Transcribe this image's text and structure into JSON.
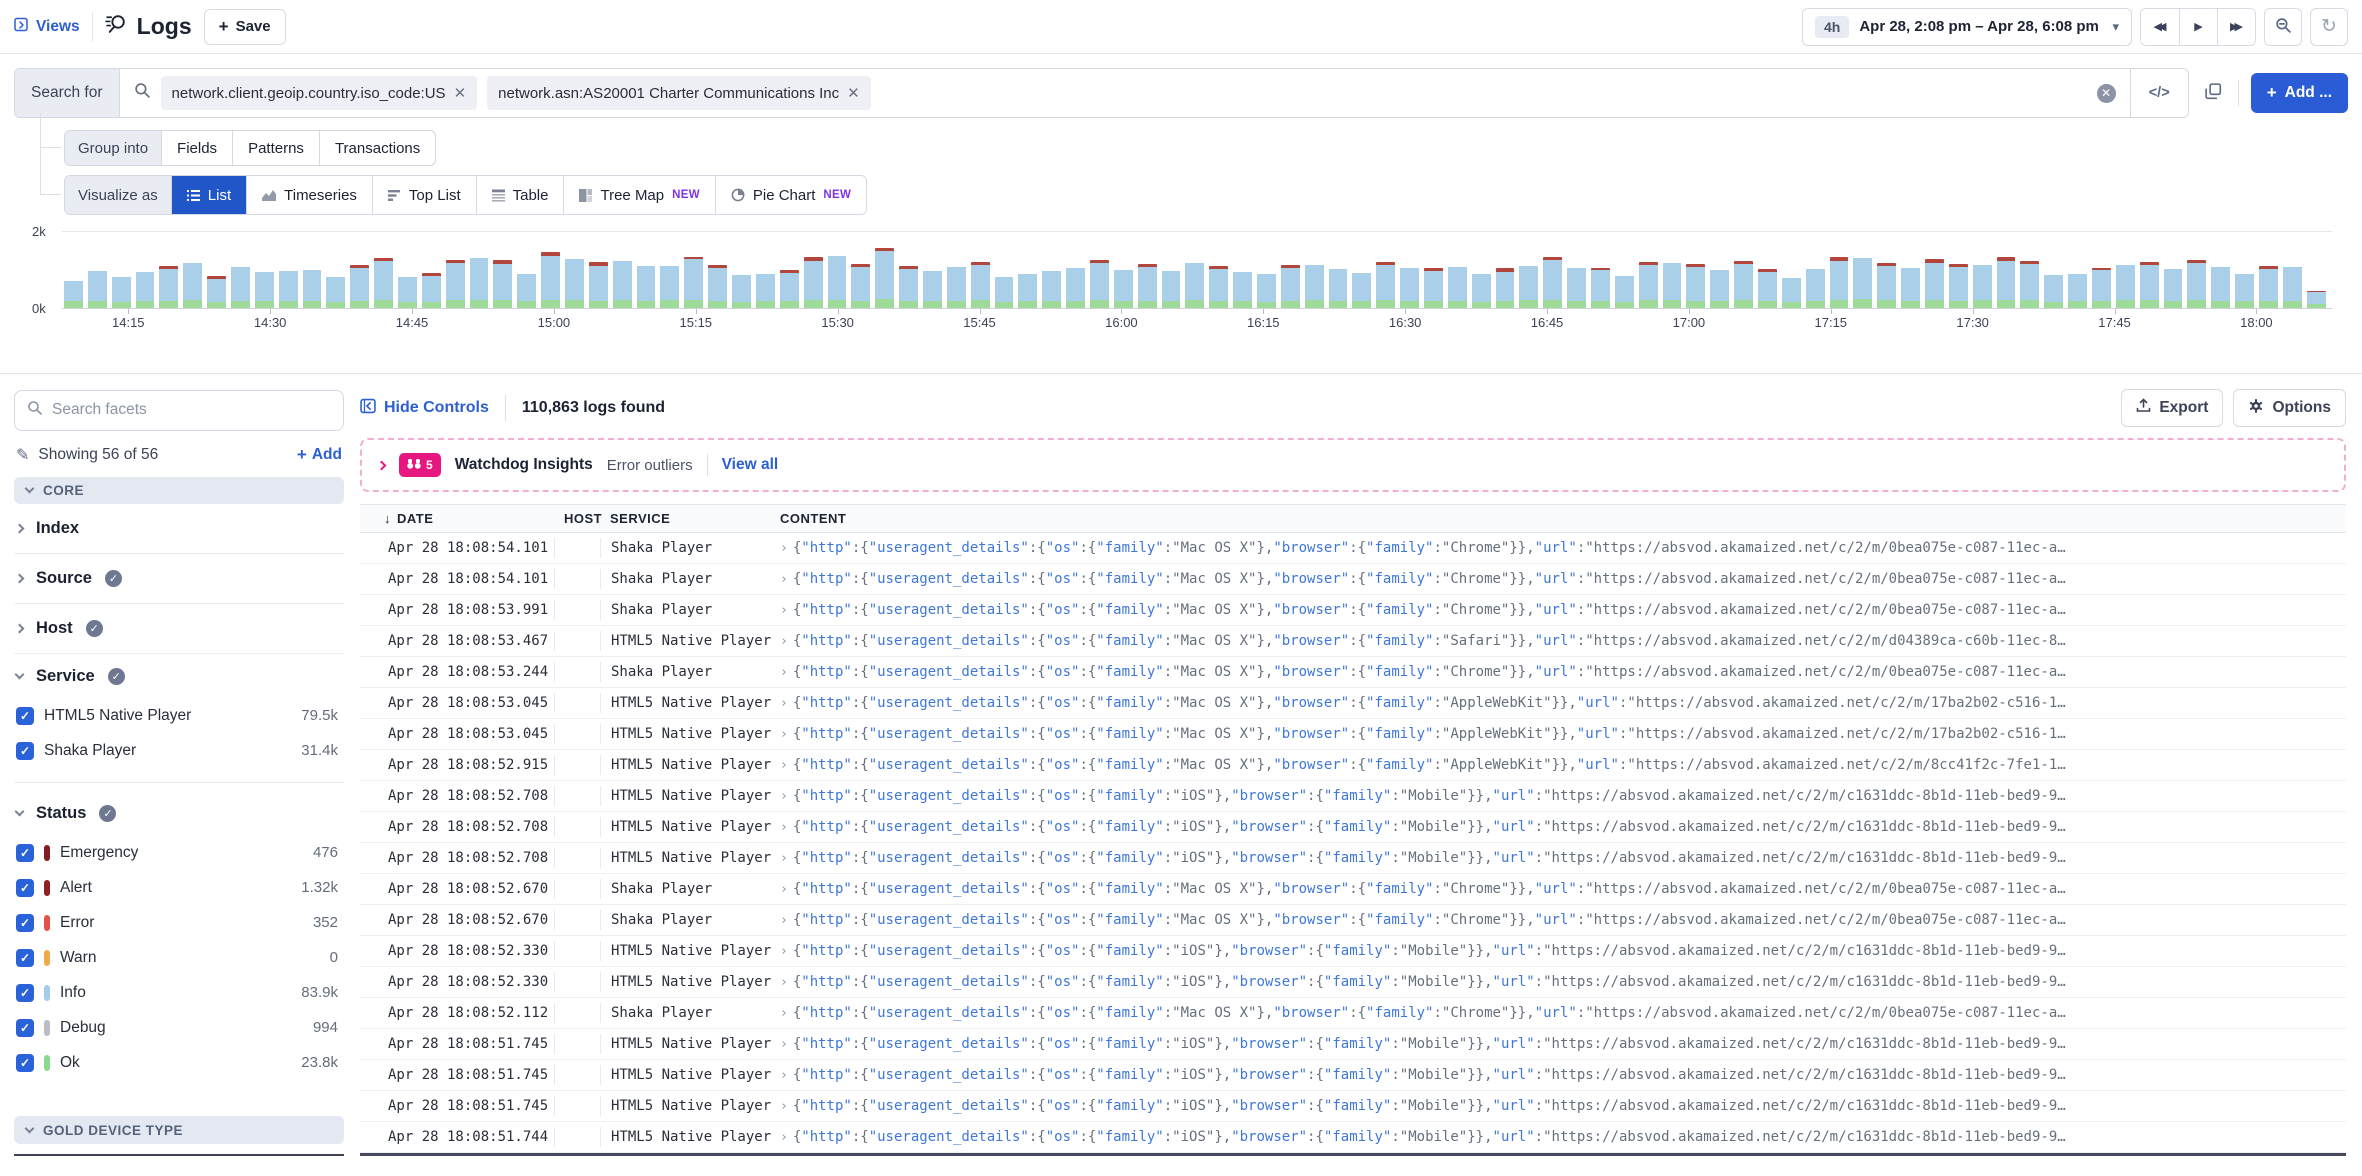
{
  "toolbar": {
    "views_label": "Views",
    "title": "Logs",
    "save_label": "Save",
    "time_range": {
      "duration": "4h",
      "label": "Apr 28, 2:08 pm – Apr 28, 6:08 pm"
    }
  },
  "search": {
    "label": "Search for",
    "chips": [
      "network.client.geoip.country.iso_code:US",
      "network.asn:AS20001 Charter Communications Inc"
    ],
    "code_toggle_label": "</>",
    "add_label": "Add ..."
  },
  "group_into": {
    "label": "Group into",
    "options": [
      "Fields",
      "Patterns",
      "Transactions"
    ]
  },
  "visualize_as": {
    "label": "Visualize as",
    "options": [
      {
        "label": "List",
        "icon": "list-icon",
        "active": true
      },
      {
        "label": "Timeseries",
        "icon": "timeseries-icon"
      },
      {
        "label": "Top List",
        "icon": "toplist-icon"
      },
      {
        "label": "Table",
        "icon": "table-icon"
      },
      {
        "label": "Tree Map",
        "icon": "treemap-icon",
        "badge": "NEW"
      },
      {
        "label": "Pie Chart",
        "icon": "pie-icon",
        "badge": "NEW"
      }
    ]
  },
  "chart_data": {
    "type": "bar",
    "stacked": true,
    "title": "Log volume histogram",
    "ylim": [
      0,
      2000
    ],
    "ytick_labels": [
      "0k",
      "2k"
    ],
    "x_start": "14:08",
    "x_end": "18:08",
    "bucket_minutes": 2.5,
    "tick_labels": [
      "14:15",
      "14:30",
      "14:45",
      "15:00",
      "15:15",
      "15:30",
      "15:45",
      "16:00",
      "16:15",
      "16:30",
      "16:45",
      "17:00",
      "17:15",
      "17:30",
      "17:45",
      "18:00"
    ],
    "legend_position": "none",
    "grid": "top-line-only",
    "bar_format": [
      "info",
      "ok",
      "error"
    ],
    "colors": {
      "info": "#a9cfe9",
      "ok": "#9edb99",
      "error": "#b2453c"
    },
    "bars": [
      [
        520,
        200,
        0
      ],
      [
        760,
        210,
        0
      ],
      [
        640,
        190,
        0
      ],
      [
        750,
        210,
        0
      ],
      [
        820,
        200,
        80
      ],
      [
        950,
        220,
        0
      ],
      [
        600,
        180,
        75
      ],
      [
        880,
        210,
        0
      ],
      [
        760,
        200,
        0
      ],
      [
        770,
        210,
        0
      ],
      [
        800,
        200,
        0
      ],
      [
        620,
        190,
        0
      ],
      [
        830,
        210,
        95
      ],
      [
        1000,
        230,
        70
      ],
      [
        640,
        180,
        0
      ],
      [
        660,
        190,
        75
      ],
      [
        950,
        230,
        85
      ],
      [
        1060,
        240,
        0
      ],
      [
        940,
        220,
        85
      ],
      [
        690,
        200,
        0
      ],
      [
        1120,
        240,
        95
      ],
      [
        1050,
        230,
        0
      ],
      [
        900,
        210,
        85
      ],
      [
        1010,
        220,
        0
      ],
      [
        890,
        210,
        0
      ],
      [
        880,
        220,
        0
      ],
      [
        1040,
        230,
        75
      ],
      [
        850,
        200,
        85
      ],
      [
        680,
        190,
        0
      ],
      [
        690,
        200,
        0
      ],
      [
        720,
        200,
        75
      ],
      [
        1010,
        230,
        85
      ],
      [
        1120,
        240,
        0
      ],
      [
        870,
        210,
        85
      ],
      [
        1220,
        260,
        95
      ],
      [
        820,
        210,
        75
      ],
      [
        770,
        200,
        0
      ],
      [
        880,
        210,
        0
      ],
      [
        920,
        220,
        75
      ],
      [
        640,
        190,
        0
      ],
      [
        700,
        200,
        0
      ],
      [
        760,
        210,
        0
      ],
      [
        850,
        210,
        0
      ],
      [
        950,
        220,
        85
      ],
      [
        800,
        210,
        0
      ],
      [
        870,
        210,
        75
      ],
      [
        780,
        200,
        0
      ],
      [
        970,
        220,
        0
      ],
      [
        820,
        210,
        85
      ],
      [
        760,
        200,
        0
      ],
      [
        700,
        190,
        0
      ],
      [
        850,
        210,
        75
      ],
      [
        900,
        220,
        0
      ],
      [
        810,
        210,
        0
      ],
      [
        730,
        200,
        0
      ],
      [
        900,
        220,
        85
      ],
      [
        840,
        210,
        0
      ],
      [
        780,
        200,
        75
      ],
      [
        860,
        210,
        0
      ],
      [
        700,
        190,
        0
      ],
      [
        760,
        200,
        85
      ],
      [
        880,
        220,
        0
      ],
      [
        1020,
        230,
        95
      ],
      [
        830,
        210,
        0
      ],
      [
        790,
        200,
        75
      ],
      [
        660,
        190,
        0
      ],
      [
        900,
        220,
        95
      ],
      [
        950,
        220,
        0
      ],
      [
        860,
        210,
        75
      ],
      [
        800,
        210,
        0
      ],
      [
        930,
        220,
        85
      ],
      [
        760,
        200,
        75
      ],
      [
        620,
        180,
        0
      ],
      [
        810,
        210,
        0
      ],
      [
        1000,
        230,
        105
      ],
      [
        1050,
        250,
        0
      ],
      [
        890,
        220,
        75
      ],
      [
        830,
        210,
        0
      ],
      [
        950,
        230,
        95
      ],
      [
        870,
        210,
        85
      ],
      [
        920,
        220,
        0
      ],
      [
        1000,
        230,
        95
      ],
      [
        930,
        220,
        85
      ],
      [
        680,
        190,
        0
      ],
      [
        700,
        200,
        0
      ],
      [
        780,
        210,
        75
      ],
      [
        900,
        220,
        0
      ],
      [
        920,
        220,
        75
      ],
      [
        820,
        210,
        0
      ],
      [
        950,
        220,
        85
      ],
      [
        860,
        210,
        0
      ],
      [
        700,
        200,
        0
      ],
      [
        820,
        210,
        75
      ],
      [
        880,
        210,
        0
      ],
      [
        310,
        120,
        40
      ]
    ]
  },
  "sidebar": {
    "search_placeholder": "Search facets",
    "showing": "Showing 56 of 56",
    "add_label": "Add",
    "core_label": "CORE",
    "collapsed_facets": [
      {
        "label": "Index",
        "verified": false
      },
      {
        "label": "Source",
        "verified": true
      },
      {
        "label": "Host",
        "verified": true
      }
    ],
    "service": {
      "label": "Service",
      "verified": true,
      "items": [
        {
          "label": "HTML5 Native Player",
          "count": "79.5k",
          "checked": true
        },
        {
          "label": "Shaka Player",
          "count": "31.4k",
          "checked": true
        }
      ]
    },
    "status": {
      "label": "Status",
      "verified": true,
      "items": [
        {
          "label": "Emergency",
          "count": "476",
          "color": "#7f1d22",
          "checked": true
        },
        {
          "label": "Alert",
          "count": "1.32k",
          "color": "#8f2126",
          "checked": true
        },
        {
          "label": "Error",
          "count": "352",
          "color": "#e5504a",
          "checked": true
        },
        {
          "label": "Warn",
          "count": "0",
          "color": "#edab4a",
          "checked": true
        },
        {
          "label": "Info",
          "count": "83.9k",
          "color": "#a4cdec",
          "checked": true
        },
        {
          "label": "Debug",
          "count": "994",
          "color": "#b9bdc6",
          "checked": true
        },
        {
          "label": "Ok",
          "count": "23.8k",
          "color": "#8bd98d",
          "checked": true
        }
      ]
    },
    "bottom_section_label": "GOLD DEVICE TYPE"
  },
  "main": {
    "hide_controls_label": "Hide Controls",
    "logs_found": "110,863 logs found",
    "export_label": "Export",
    "options_label": "Options",
    "watchdog": {
      "badge_count": "5",
      "title": "Watchdog Insights",
      "subtitle": "Error outliers",
      "view_all_label": "View all"
    },
    "table": {
      "columns": [
        "DATE",
        "HOST",
        "SERVICE",
        "CONTENT"
      ],
      "url_base": "https://absvod.akamaized.net/c/2/m/",
      "rows": [
        {
          "status": "ok",
          "date": "Apr 28 18:08:54.101",
          "host": "",
          "service": "Shaka Player",
          "os": "Mac OS X",
          "browser": "Chrome",
          "url_id": "0bea075e-c087-11ec-a"
        },
        {
          "status": "info",
          "date": "Apr 28 18:08:54.101",
          "host": "",
          "service": "Shaka Player",
          "os": "Mac OS X",
          "browser": "Chrome",
          "url_id": "0bea075e-c087-11ec-a"
        },
        {
          "status": "ok",
          "date": "Apr 28 18:08:53.991",
          "host": "",
          "service": "Shaka Player",
          "os": "Mac OS X",
          "browser": "Chrome",
          "url_id": "0bea075e-c087-11ec-a"
        },
        {
          "status": "info",
          "date": "Apr 28 18:08:53.467",
          "host": "",
          "service": "HTML5 Native Player",
          "os": "Mac OS X",
          "browser": "Safari",
          "url_id": "d04389ca-c60b-11ec-8"
        },
        {
          "status": "info",
          "date": "Apr 28 18:08:53.244",
          "host": "",
          "service": "Shaka Player",
          "os": "Mac OS X",
          "browser": "Chrome",
          "url_id": "0bea075e-c087-11ec-a"
        },
        {
          "status": "info",
          "date": "Apr 28 18:08:53.045",
          "host": "",
          "service": "HTML5 Native Player",
          "os": "Mac OS X",
          "browser": "AppleWebKit",
          "url_id": "17ba2b02-c516-1"
        },
        {
          "status": "info",
          "date": "Apr 28 18:08:53.045",
          "host": "",
          "service": "HTML5 Native Player",
          "os": "Mac OS X",
          "browser": "AppleWebKit",
          "url_id": "17ba2b02-c516-1"
        },
        {
          "status": "info",
          "date": "Apr 28 18:08:52.915",
          "host": "",
          "service": "HTML5 Native Player",
          "os": "Mac OS X",
          "browser": "AppleWebKit",
          "url_id": "8cc41f2c-7fe1-1"
        },
        {
          "status": "info",
          "date": "Apr 28 18:08:52.708",
          "host": "",
          "service": "HTML5 Native Player",
          "os": "iOS",
          "browser": "Mobile",
          "url_id": "c1631ddc-8b1d-11eb-bed9-9"
        },
        {
          "status": "info",
          "date": "Apr 28 18:08:52.708",
          "host": "",
          "service": "HTML5 Native Player",
          "os": "iOS",
          "browser": "Mobile",
          "url_id": "c1631ddc-8b1d-11eb-bed9-9"
        },
        {
          "status": "ok",
          "date": "Apr 28 18:08:52.708",
          "host": "",
          "service": "HTML5 Native Player",
          "os": "iOS",
          "browser": "Mobile",
          "url_id": "c1631ddc-8b1d-11eb-bed9-9"
        },
        {
          "status": "info",
          "date": "Apr 28 18:08:52.670",
          "host": "",
          "service": "Shaka Player",
          "os": "Mac OS X",
          "browser": "Chrome",
          "url_id": "0bea075e-c087-11ec-a"
        },
        {
          "status": "info",
          "date": "Apr 28 18:08:52.670",
          "host": "",
          "service": "Shaka Player",
          "os": "Mac OS X",
          "browser": "Chrome",
          "url_id": "0bea075e-c087-11ec-a"
        },
        {
          "status": "ok",
          "date": "Apr 28 18:08:52.330",
          "host": "",
          "service": "HTML5 Native Player",
          "os": "iOS",
          "browser": "Mobile",
          "url_id": "c1631ddc-8b1d-11eb-bed9-9"
        },
        {
          "status": "info",
          "date": "Apr 28 18:08:52.330",
          "host": "",
          "service": "HTML5 Native Player",
          "os": "iOS",
          "browser": "Mobile",
          "url_id": "c1631ddc-8b1d-11eb-bed9-9"
        },
        {
          "status": "info",
          "date": "Apr 28 18:08:52.112",
          "host": "",
          "service": "Shaka Player",
          "os": "Mac OS X",
          "browser": "Chrome",
          "url_id": "0bea075e-c087-11ec-a"
        },
        {
          "status": "info",
          "date": "Apr 28 18:08:51.745",
          "host": "",
          "service": "HTML5 Native Player",
          "os": "iOS",
          "browser": "Mobile",
          "url_id": "c1631ddc-8b1d-11eb-bed9-9"
        },
        {
          "status": "info",
          "date": "Apr 28 18:08:51.745",
          "host": "",
          "service": "HTML5 Native Player",
          "os": "iOS",
          "browser": "Mobile",
          "url_id": "c1631ddc-8b1d-11eb-bed9-9"
        },
        {
          "status": "info",
          "date": "Apr 28 18:08:51.745",
          "host": "",
          "service": "HTML5 Native Player",
          "os": "iOS",
          "browser": "Mobile",
          "url_id": "c1631ddc-8b1d-11eb-bed9-9"
        },
        {
          "status": "info",
          "date": "Apr 28 18:08:51.744",
          "host": "",
          "service": "HTML5 Native Player",
          "os": "iOS",
          "browser": "Mobile",
          "url_id": "c1631ddc-8b1d-11eb-bed9-9"
        }
      ]
    }
  }
}
